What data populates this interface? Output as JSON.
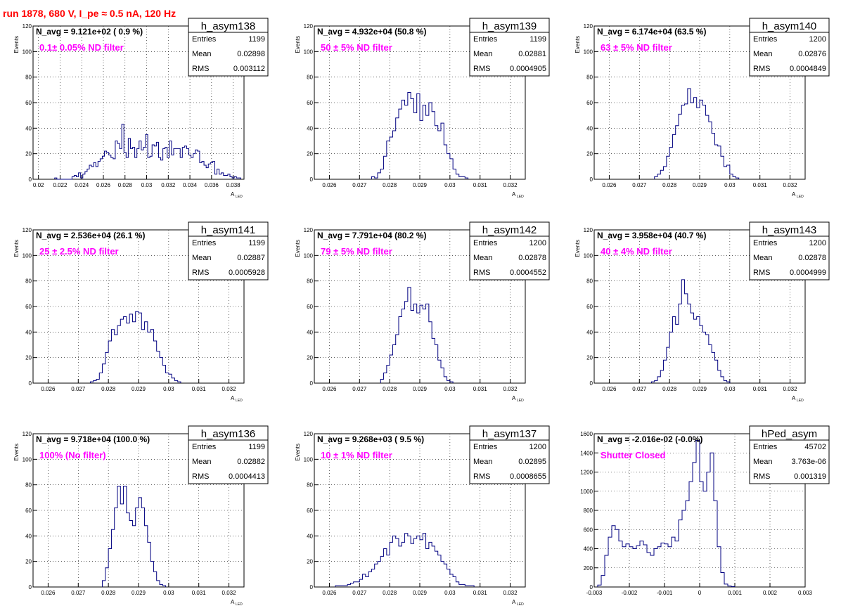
{
  "run_title": "run 1878,   680 V, I_pe ≈ 0.5 nA, 120 Hz",
  "colors": {
    "title": "#ff0000",
    "filter_label": "#ff00ff",
    "histogram": "#000080",
    "grid": "#000000"
  },
  "stats_labels": {
    "entries": "Entries",
    "mean": "Mean",
    "rms": "RMS"
  },
  "yaxis_label": "Events",
  "chart_data": [
    {
      "type": "histogram",
      "name": "h_asym138",
      "navg_text": "N_avg = 9.121e+02 ( 0.9 %)",
      "filter_text": "0.1± 0.05% ND filter",
      "stats": {
        "entries": "1199",
        "mean": "0.02898",
        "rms": "0.003112"
      },
      "xlabel": "A",
      "xlabel_sub": "LED",
      "ylabel": "Events",
      "xlim": [
        0.0195,
        0.039
      ],
      "ylim": [
        0,
        120
      ],
      "xticks": [
        0.02,
        0.022,
        0.024,
        0.026,
        0.028,
        0.03,
        0.032,
        0.034,
        0.036,
        0.038
      ],
      "xtick_labels": [
        "0.02",
        "0.022",
        "0.024",
        "0.026",
        "0.028",
        "0.03",
        "0.032",
        "0.034",
        "0.036",
        "0.038"
      ],
      "yticks": [
        0,
        20,
        40,
        60,
        80,
        100,
        120
      ],
      "ytick_labels": [
        "0",
        "20",
        "40",
        "60",
        "80",
        "100",
        "120"
      ],
      "bin_start": 0.0215,
      "bin_width": 0.0002,
      "values": [
        1,
        0,
        0,
        0,
        0,
        0,
        0,
        0,
        2,
        3,
        2,
        5,
        1,
        4,
        6,
        8,
        11,
        10,
        13,
        10,
        14,
        16,
        18,
        22,
        21,
        19,
        17,
        16,
        30,
        28,
        24,
        43,
        21,
        17,
        32,
        24,
        25,
        17,
        24,
        30,
        23,
        25,
        35,
        17,
        18,
        27,
        26,
        29,
        17,
        15,
        24,
        25,
        17,
        30,
        19,
        24,
        24,
        24,
        17,
        25,
        26,
        24,
        19,
        17,
        20,
        23,
        22,
        13,
        14,
        11,
        9,
        12,
        13,
        14,
        4,
        8,
        4,
        5,
        3,
        3,
        4,
        2,
        1,
        2,
        1,
        1
      ]
    },
    {
      "type": "histogram",
      "name": "h_asym139",
      "navg_text": "N_avg = 4.932e+04 (50.8 %)",
      "filter_text": "50 ± 5% ND filter",
      "stats": {
        "entries": "1199",
        "mean": "0.02881",
        "rms": "0.0004905"
      },
      "xlabel": "A",
      "xlabel_sub": "LED",
      "ylabel": "Events",
      "xlim": [
        0.0255,
        0.0325
      ],
      "ylim": [
        0,
        120
      ],
      "xticks": [
        0.026,
        0.027,
        0.028,
        0.029,
        0.03,
        0.031,
        0.032
      ],
      "xtick_labels": [
        "0.026",
        "0.027",
        "0.028",
        "0.029",
        "0.03",
        "0.031",
        "0.032"
      ],
      "yticks": [
        0,
        20,
        40,
        60,
        80,
        100,
        120
      ],
      "ytick_labels": [
        "0",
        "20",
        "40",
        "60",
        "80",
        "100",
        "120"
      ],
      "bin_start": 0.0274,
      "bin_width": 0.0001,
      "values": [
        2,
        1,
        5,
        8,
        18,
        30,
        33,
        38,
        48,
        55,
        62,
        58,
        68,
        63,
        52,
        67,
        46,
        58,
        50,
        60,
        53,
        42,
        38,
        44,
        27,
        20,
        16,
        8,
        4,
        2,
        2,
        1
      ]
    },
    {
      "type": "histogram",
      "name": "h_asym140",
      "navg_text": "N_avg = 6.174e+04 (63.5 %)",
      "filter_text": "63 ± 5% ND filter",
      "stats": {
        "entries": "1200",
        "mean": "0.02876",
        "rms": "0.0004849"
      },
      "xlabel": "A",
      "xlabel_sub": "LED",
      "ylabel": "Events",
      "xlim": [
        0.0255,
        0.0325
      ],
      "ylim": [
        0,
        120
      ],
      "xticks": [
        0.026,
        0.027,
        0.028,
        0.029,
        0.03,
        0.031,
        0.032
      ],
      "xtick_labels": [
        "0.026",
        "0.027",
        "0.028",
        "0.029",
        "0.03",
        "0.031",
        "0.032"
      ],
      "yticks": [
        0,
        20,
        40,
        60,
        80,
        100,
        120
      ],
      "ytick_labels": [
        "0",
        "20",
        "40",
        "60",
        "80",
        "100",
        "120"
      ],
      "bin_start": 0.0275,
      "bin_width": 0.0001,
      "values": [
        2,
        4,
        7,
        10,
        18,
        25,
        35,
        42,
        51,
        58,
        59,
        71,
        60,
        64,
        56,
        62,
        58,
        50,
        45,
        36,
        27,
        26,
        18,
        10,
        11,
        4,
        2,
        1
      ]
    },
    {
      "type": "histogram",
      "name": "h_asym141",
      "navg_text": "N_avg = 2.536e+04 (26.1 %)",
      "filter_text": "25 ± 2.5% ND filter",
      "stats": {
        "entries": "1199",
        "mean": "0.02887",
        "rms": "0.0005928"
      },
      "xlabel": "A",
      "xlabel_sub": "LED",
      "ylabel": "Events",
      "xlim": [
        0.0255,
        0.0325
      ],
      "ylim": [
        0,
        120
      ],
      "xticks": [
        0.026,
        0.027,
        0.028,
        0.029,
        0.03,
        0.031,
        0.032
      ],
      "xtick_labels": [
        "0.026",
        "0.027",
        "0.028",
        "0.029",
        "0.03",
        "0.031",
        "0.032"
      ],
      "yticks": [
        0,
        20,
        40,
        60,
        80,
        100,
        120
      ],
      "ytick_labels": [
        "0",
        "20",
        "40",
        "60",
        "80",
        "100",
        "120"
      ],
      "bin_start": 0.0274,
      "bin_width": 0.0001,
      "values": [
        1,
        2,
        3,
        8,
        15,
        24,
        33,
        42,
        38,
        45,
        50,
        52,
        47,
        54,
        48,
        56,
        55,
        42,
        48,
        40,
        42,
        33,
        25,
        20,
        14,
        8,
        7,
        4,
        2,
        1
      ]
    },
    {
      "type": "histogram",
      "name": "h_asym142",
      "navg_text": "N_avg = 7.791e+04 (80.2 %)",
      "filter_text": "79 ± 5% ND filter",
      "stats": {
        "entries": "1200",
        "mean": "0.02878",
        "rms": "0.0004552"
      },
      "xlabel": "A",
      "xlabel_sub": "LED",
      "ylabel": "Events",
      "xlim": [
        0.0255,
        0.0325
      ],
      "ylim": [
        0,
        120
      ],
      "xticks": [
        0.026,
        0.027,
        0.028,
        0.029,
        0.03,
        0.031,
        0.032
      ],
      "xtick_labels": [
        "0.026",
        "0.027",
        "0.028",
        "0.029",
        "0.03",
        "0.031",
        "0.032"
      ],
      "yticks": [
        0,
        20,
        40,
        60,
        80,
        100,
        120
      ],
      "ytick_labels": [
        "0",
        "20",
        "40",
        "60",
        "80",
        "100",
        "120"
      ],
      "bin_start": 0.0277,
      "bin_width": 0.0001,
      "values": [
        3,
        8,
        14,
        22,
        30,
        38,
        52,
        58,
        64,
        75,
        57,
        62,
        55,
        61,
        58,
        62,
        48,
        35,
        30,
        18,
        12,
        5,
        2,
        1
      ]
    },
    {
      "type": "histogram",
      "name": "h_asym143",
      "navg_text": "N_avg = 3.958e+04 (40.7 %)",
      "filter_text": "40 ± 4% ND filter",
      "stats": {
        "entries": "1200",
        "mean": "0.02878",
        "rms": "0.0004999"
      },
      "xlabel": "A",
      "xlabel_sub": "LED",
      "ylabel": "Events",
      "xlim": [
        0.0255,
        0.0325
      ],
      "ylim": [
        0,
        120
      ],
      "xticks": [
        0.026,
        0.027,
        0.028,
        0.029,
        0.03,
        0.031,
        0.032
      ],
      "xtick_labels": [
        "0.026",
        "0.027",
        "0.028",
        "0.029",
        "0.03",
        "0.031",
        "0.032"
      ],
      "yticks": [
        0,
        20,
        40,
        60,
        80,
        100,
        120
      ],
      "ytick_labels": [
        "0",
        "20",
        "40",
        "60",
        "80",
        "100",
        "120"
      ],
      "bin_start": 0.0274,
      "bin_width": 0.0001,
      "values": [
        1,
        2,
        5,
        10,
        18,
        28,
        40,
        52,
        46,
        62,
        81,
        70,
        62,
        55,
        50,
        52,
        45,
        40,
        38,
        30,
        24,
        18,
        10,
        5,
        2,
        1
      ]
    },
    {
      "type": "histogram",
      "name": "h_asym136",
      "navg_text": "N_avg = 9.718e+04 (100.0 %)",
      "filter_text": "100% (No filter)",
      "stats": {
        "entries": "1199",
        "mean": "0.02882",
        "rms": "0.0004413"
      },
      "xlabel": "A",
      "xlabel_sub": "LED",
      "ylabel": "Events",
      "xlim": [
        0.0255,
        0.0325
      ],
      "ylim": [
        0,
        120
      ],
      "xticks": [
        0.026,
        0.027,
        0.028,
        0.029,
        0.03,
        0.031,
        0.032
      ],
      "xtick_labels": [
        "0.026",
        "0.027",
        "0.028",
        "0.029",
        "0.03",
        "0.031",
        "0.032"
      ],
      "yticks": [
        0,
        20,
        40,
        60,
        80,
        100,
        120
      ],
      "ytick_labels": [
        "0",
        "20",
        "40",
        "60",
        "80",
        "100",
        "120"
      ],
      "bin_start": 0.0278,
      "bin_width": 0.0001,
      "values": [
        5,
        15,
        30,
        45,
        62,
        79,
        65,
        79,
        58,
        52,
        48,
        62,
        70,
        62,
        48,
        35,
        20,
        12,
        5,
        2,
        1
      ]
    },
    {
      "type": "histogram",
      "name": "h_asym137",
      "navg_text": "N_avg = 9.268e+03 ( 9.5 %)",
      "filter_text": "10 ± 1% ND filter",
      "stats": {
        "entries": "1200",
        "mean": "0.02895",
        "rms": "0.0008655"
      },
      "xlabel": "A",
      "xlabel_sub": "LED",
      "ylabel": "Events",
      "xlim": [
        0.0255,
        0.0325
      ],
      "ylim": [
        0,
        120
      ],
      "xticks": [
        0.026,
        0.027,
        0.028,
        0.029,
        0.03,
        0.031,
        0.032
      ],
      "xtick_labels": [
        "0.026",
        "0.027",
        "0.028",
        "0.029",
        "0.03",
        "0.031",
        "0.032"
      ],
      "yticks": [
        0,
        20,
        40,
        60,
        80,
        100,
        120
      ],
      "ytick_labels": [
        "0",
        "20",
        "40",
        "60",
        "80",
        "100",
        "120"
      ],
      "bin_start": 0.0262,
      "bin_width": 0.0001,
      "values": [
        1,
        1,
        1,
        1,
        2,
        3,
        4,
        4,
        6,
        10,
        8,
        12,
        14,
        18,
        20,
        24,
        30,
        25,
        35,
        40,
        38,
        32,
        35,
        42,
        40,
        34,
        38,
        40,
        37,
        42,
        30,
        35,
        32,
        28,
        25,
        20,
        18,
        14,
        10,
        8,
        4,
        2,
        2,
        1,
        1,
        1
      ]
    },
    {
      "type": "histogram",
      "name": "hPed_asym",
      "navg_text": "N_avg = -2.016e-02 (-0.0%)",
      "filter_text": "Shutter Closed",
      "stats": {
        "entries": "45702",
        "mean": "3.763e-06",
        "rms": "0.001319"
      },
      "xlabel": "",
      "xlabel_sub": "",
      "ylabel": "",
      "xlim": [
        -0.003,
        0.003
      ],
      "ylim": [
        0,
        1600
      ],
      "xticks": [
        -0.003,
        -0.002,
        -0.001,
        0,
        0.001,
        0.002,
        0.003
      ],
      "xtick_labels": [
        "-0.003",
        "-0.002",
        "-0.001",
        "0",
        "0.001",
        "0.002",
        "0.003"
      ],
      "yticks": [
        0,
        200,
        400,
        600,
        800,
        1000,
        1200,
        1400,
        1600
      ],
      "ytick_labels": [
        "0",
        "200",
        "400",
        "600",
        "800",
        "1000",
        "1200",
        "1400",
        "1600"
      ],
      "bin_start": -0.0029,
      "bin_width": 0.0001,
      "values": [
        20,
        120,
        330,
        520,
        640,
        600,
        480,
        420,
        450,
        420,
        400,
        430,
        480,
        440,
        360,
        330,
        400,
        420,
        460,
        450,
        420,
        520,
        480,
        700,
        800,
        900,
        1100,
        1300,
        1530,
        1100,
        1000,
        1200,
        1400,
        900,
        420,
        150,
        30,
        10,
        5
      ]
    }
  ]
}
